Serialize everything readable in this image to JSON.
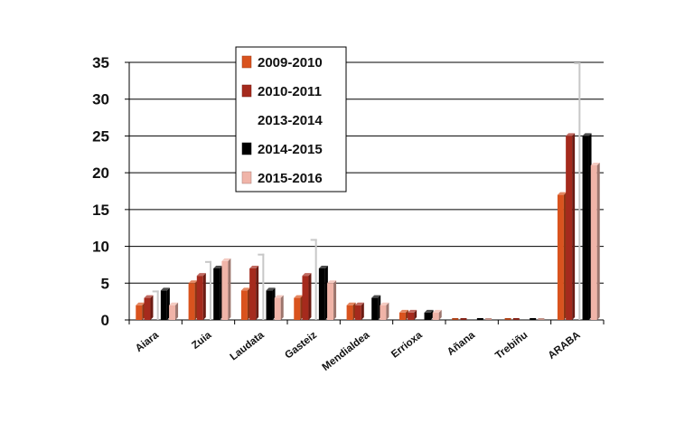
{
  "chart_data": {
    "type": "bar",
    "categories": [
      "Aiara",
      "Zuia",
      "Laudata",
      "Gasteiz",
      "Mendialdea",
      "Errioxa",
      "Añana",
      "Trebiñu",
      "ARABA"
    ],
    "series": [
      {
        "name": "2009-2010",
        "color": "#d9531e",
        "values": [
          2,
          5,
          4,
          3,
          2,
          1,
          0,
          0,
          17
        ]
      },
      {
        "name": "2010-2011",
        "color": "#a52a1d",
        "values": [
          3,
          6,
          7,
          6,
          2,
          1,
          0,
          0,
          25
        ]
      },
      {
        "name": "2013-2014",
        "color": "#c8c8c8",
        "values": [
          4,
          8,
          9,
          11,
          0,
          0,
          0,
          0,
          35
        ]
      },
      {
        "name": "2014-2015",
        "color": "#000000",
        "values": [
          4,
          7,
          4,
          7,
          3,
          1,
          0,
          0,
          25
        ]
      },
      {
        "name": "2015-2016",
        "color": "#f0b4a8",
        "values": [
          2,
          8,
          3,
          5,
          2,
          1,
          0,
          0,
          21
        ]
      }
    ],
    "yticks": [
      "0",
      "5",
      "10",
      "15",
      "20",
      "25",
      "30",
      "35"
    ],
    "ylim": [
      0,
      35
    ],
    "grid": true,
    "legend": "top-center"
  }
}
